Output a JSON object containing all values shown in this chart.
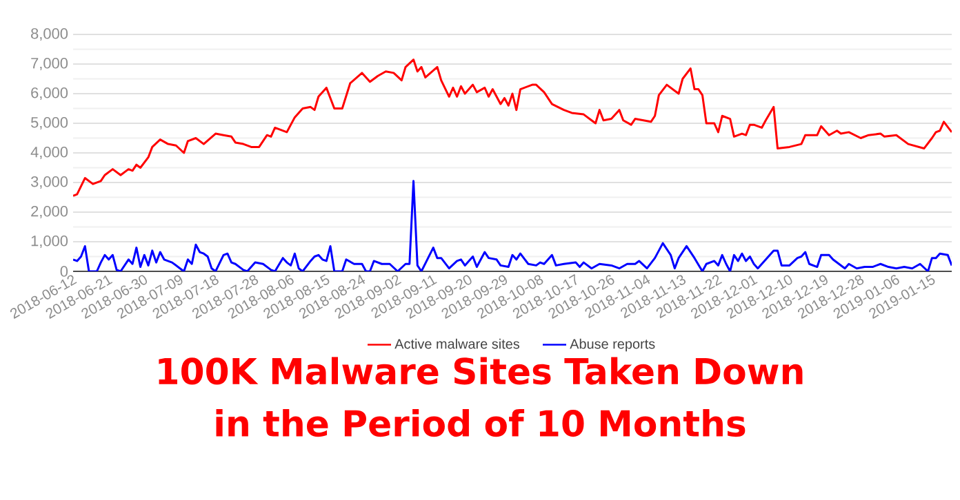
{
  "chart_data": {
    "type": "line",
    "title": "100K Malware Sites Taken Down in the Period of 10 Months",
    "xlim": [
      "2018-06-12",
      "2019-01-20"
    ],
    "xticks": [
      "2018-06-12",
      "2018-06-21",
      "2018-06-30",
      "2018-07-09",
      "2018-07-18",
      "2018-07-28",
      "2018-08-06",
      "2018-08-15",
      "2018-08-24",
      "2018-09-02",
      "2018-09-11",
      "2018-09-20",
      "2018-09-29",
      "2018-10-08",
      "2018-10-17",
      "2018-10-26",
      "2018-11-04",
      "2018-11-13",
      "2018-11-22",
      "2018-12-01",
      "2018-12-10",
      "2018-12-19",
      "2018-12-28",
      "2019-01-06",
      "2019-01-15"
    ],
    "ylim": [
      0,
      8000
    ],
    "yticks": [
      0,
      {
        "value": 1000,
        "label": "1,000"
      },
      {
        "value": 2000,
        "label": "2,000"
      },
      {
        "value": 3000,
        "label": "3,000"
      },
      {
        "value": 4000,
        "label": "4,000"
      },
      {
        "value": 5000,
        "label": "5,000"
      },
      {
        "value": 6000,
        "label": "6,000"
      },
      {
        "value": 7000,
        "label": "7,000"
      },
      {
        "value": 8000,
        "label": "8,000"
      }
    ],
    "grid": "y",
    "legend": "bottom",
    "marker": "none",
    "line_style": "solid",
    "series": [
      {
        "name": "Active malware sites",
        "color": "#ff0000",
        "x": [
          "2018-06-12",
          "2018-06-13",
          "2018-06-15",
          "2018-06-17",
          "2018-06-19",
          "2018-06-20",
          "2018-06-22",
          "2018-06-24",
          "2018-06-26",
          "2018-06-27",
          "2018-06-28",
          "2018-06-29",
          "2018-07-01",
          "2018-07-02",
          "2018-07-04",
          "2018-07-06",
          "2018-07-08",
          "2018-07-10",
          "2018-07-11",
          "2018-07-13",
          "2018-07-15",
          "2018-07-18",
          "2018-07-20",
          "2018-07-22",
          "2018-07-23",
          "2018-07-25",
          "2018-07-27",
          "2018-07-29",
          "2018-07-31",
          "2018-08-01",
          "2018-08-02",
          "2018-08-05",
          "2018-08-07",
          "2018-08-09",
          "2018-08-11",
          "2018-08-12",
          "2018-08-13",
          "2018-08-15",
          "2018-08-17",
          "2018-08-19",
          "2018-08-21",
          "2018-08-24",
          "2018-08-26",
          "2018-08-28",
          "2018-08-30",
          "2018-09-01",
          "2018-09-03",
          "2018-09-04",
          "2018-09-06",
          "2018-09-07",
          "2018-09-08",
          "2018-09-09",
          "2018-09-12",
          "2018-09-13",
          "2018-09-15",
          "2018-09-16",
          "2018-09-17",
          "2018-09-18",
          "2018-09-19",
          "2018-09-21",
          "2018-09-22",
          "2018-09-24",
          "2018-09-25",
          "2018-09-26",
          "2018-09-27",
          "2018-09-28",
          "2018-09-29",
          "2018-09-30",
          "2018-10-01",
          "2018-10-02",
          "2018-10-03",
          "2018-10-06",
          "2018-10-07",
          "2018-10-09",
          "2018-10-11",
          "2018-10-14",
          "2018-10-16",
          "2018-10-19",
          "2018-10-21",
          "2018-10-22",
          "2018-10-23",
          "2018-10-24",
          "2018-10-26",
          "2018-10-28",
          "2018-10-29",
          "2018-10-31",
          "2018-11-01",
          "2018-11-03",
          "2018-11-05",
          "2018-11-06",
          "2018-11-07",
          "2018-11-09",
          "2018-11-11",
          "2018-11-12",
          "2018-11-13",
          "2018-11-15",
          "2018-11-16",
          "2018-11-17",
          "2018-11-18",
          "2018-11-19",
          "2018-11-21",
          "2018-11-22",
          "2018-11-23",
          "2018-11-25",
          "2018-11-26",
          "2018-11-28",
          "2018-11-29",
          "2018-11-30",
          "2018-12-01",
          "2018-12-03",
          "2018-12-04",
          "2018-12-06",
          "2018-12-07",
          "2018-12-10",
          "2018-12-13",
          "2018-12-14",
          "2018-12-17",
          "2018-12-18",
          "2018-12-20",
          "2018-12-22",
          "2018-12-23",
          "2018-12-25",
          "2018-12-28",
          "2018-12-30",
          "2019-01-02",
          "2019-01-03",
          "2019-01-06",
          "2019-01-09",
          "2019-01-13",
          "2019-01-15",
          "2019-01-16",
          "2019-01-17",
          "2019-01-18",
          "2019-01-20"
        ],
        "values": [
          2550,
          2600,
          3150,
          2950,
          3050,
          3250,
          3450,
          3250,
          3450,
          3400,
          3600,
          3500,
          3850,
          4200,
          4450,
          4300,
          4250,
          4000,
          4400,
          4500,
          4300,
          4650,
          4600,
          4550,
          4350,
          4300,
          4200,
          4200,
          4600,
          4550,
          4850,
          4700,
          5200,
          5500,
          5550,
          5450,
          5900,
          6200,
          5500,
          5500,
          6350,
          6700,
          6400,
          6600,
          6750,
          6700,
          6450,
          6900,
          7150,
          6750,
          6900,
          6550,
          6900,
          6450,
          5900,
          6200,
          5900,
          6250,
          6000,
          6300,
          6050,
          6200,
          5900,
          6150,
          5900,
          5650,
          5850,
          5600,
          6000,
          5450,
          6150,
          6300,
          6300,
          6050,
          5650,
          5450,
          5350,
          5300,
          5100,
          5000,
          5450,
          5100,
          5150,
          5450,
          5100,
          4950,
          5150,
          5100,
          5050,
          5250,
          5950,
          6300,
          6100,
          6000,
          6500,
          6850,
          6150,
          6150,
          5950,
          5000,
          5000,
          4700,
          5250,
          5150,
          4550,
          4650,
          4600,
          4950,
          4950,
          4850,
          5100,
          5550,
          4150,
          4200,
          4300,
          4600,
          4600,
          4900,
          4600,
          4750,
          4650,
          4700,
          4500,
          4600,
          4650,
          4550,
          4600,
          4300,
          4150,
          4500,
          4700,
          4750,
          5050,
          4700
        ]
      },
      {
        "name": "Abuse reports",
        "color": "#0000ff",
        "x": [
          "2018-06-12",
          "2018-06-13",
          "2018-06-14",
          "2018-06-15",
          "2018-06-16",
          "2018-06-18",
          "2018-06-19",
          "2018-06-20",
          "2018-06-21",
          "2018-06-22",
          "2018-06-23",
          "2018-06-24",
          "2018-06-26",
          "2018-06-27",
          "2018-06-28",
          "2018-06-29",
          "2018-06-30",
          "2018-07-01",
          "2018-07-02",
          "2018-07-03",
          "2018-07-04",
          "2018-07-05",
          "2018-07-07",
          "2018-07-09",
          "2018-07-10",
          "2018-07-11",
          "2018-07-12",
          "2018-07-13",
          "2018-07-14",
          "2018-07-15",
          "2018-07-16",
          "2018-07-17",
          "2018-07-18",
          "2018-07-20",
          "2018-07-21",
          "2018-07-22",
          "2018-07-23",
          "2018-07-25",
          "2018-07-26",
          "2018-07-28",
          "2018-07-30",
          "2018-08-01",
          "2018-08-02",
          "2018-08-04",
          "2018-08-05",
          "2018-08-06",
          "2018-08-07",
          "2018-08-08",
          "2018-08-09",
          "2018-08-11",
          "2018-08-12",
          "2018-08-13",
          "2018-08-14",
          "2018-08-15",
          "2018-08-16",
          "2018-08-17",
          "2018-08-19",
          "2018-08-20",
          "2018-08-22",
          "2018-08-24",
          "2018-08-25",
          "2018-08-26",
          "2018-08-27",
          "2018-08-29",
          "2018-08-31",
          "2018-09-02",
          "2018-09-04",
          "2018-09-05",
          "2018-09-06",
          "2018-09-07",
          "2018-09-08",
          "2018-09-11",
          "2018-09-12",
          "2018-09-13",
          "2018-09-15",
          "2018-09-17",
          "2018-09-18",
          "2018-09-19",
          "2018-09-21",
          "2018-09-22",
          "2018-09-24",
          "2018-09-25",
          "2018-09-27",
          "2018-09-28",
          "2018-09-30",
          "2018-10-01",
          "2018-10-02",
          "2018-10-03",
          "2018-10-05",
          "2018-10-07",
          "2018-10-08",
          "2018-10-09",
          "2018-10-11",
          "2018-10-12",
          "2018-10-14",
          "2018-10-17",
          "2018-10-18",
          "2018-10-19",
          "2018-10-21",
          "2018-10-23",
          "2018-10-26",
          "2018-10-28",
          "2018-10-30",
          "2018-11-01",
          "2018-11-02",
          "2018-11-04",
          "2018-11-06",
          "2018-11-07",
          "2018-11-08",
          "2018-11-10",
          "2018-11-11",
          "2018-11-12",
          "2018-11-14",
          "2018-11-16",
          "2018-11-18",
          "2018-11-19",
          "2018-11-21",
          "2018-11-22",
          "2018-11-23",
          "2018-11-24",
          "2018-11-25",
          "2018-11-26",
          "2018-11-27",
          "2018-11-28",
          "2018-11-29",
          "2018-11-30",
          "2018-12-01",
          "2018-12-02",
          "2018-12-04",
          "2018-12-06",
          "2018-12-07",
          "2018-12-08",
          "2018-12-10",
          "2018-12-12",
          "2018-12-13",
          "2018-12-14",
          "2018-12-15",
          "2018-12-17",
          "2018-12-18",
          "2018-12-20",
          "2018-12-21",
          "2018-12-24",
          "2018-12-25",
          "2018-12-27",
          "2018-12-29",
          "2018-12-31",
          "2019-01-02",
          "2019-01-04",
          "2019-01-06",
          "2019-01-08",
          "2019-01-10",
          "2019-01-12",
          "2019-01-14",
          "2019-01-15",
          "2019-01-16",
          "2019-01-17",
          "2019-01-19",
          "2019-01-20"
        ],
        "values": [
          400,
          350,
          500,
          850,
          0,
          0,
          300,
          550,
          400,
          550,
          50,
          0,
          400,
          250,
          800,
          150,
          550,
          200,
          700,
          300,
          650,
          400,
          300,
          100,
          0,
          400,
          250,
          900,
          650,
          600,
          500,
          100,
          0,
          550,
          600,
          300,
          250,
          50,
          0,
          300,
          250,
          50,
          0,
          450,
          300,
          200,
          600,
          100,
          0,
          350,
          500,
          550,
          400,
          350,
          850,
          0,
          0,
          400,
          250,
          250,
          0,
          0,
          350,
          250,
          250,
          0,
          250,
          250,
          3050,
          200,
          0,
          800,
          450,
          450,
          100,
          350,
          400,
          200,
          500,
          150,
          650,
          450,
          400,
          200,
          150,
          550,
          400,
          600,
          250,
          200,
          300,
          250,
          550,
          200,
          250,
          300,
          150,
          300,
          100,
          250,
          200,
          100,
          250,
          250,
          350,
          100,
          450,
          700,
          950,
          550,
          100,
          450,
          850,
          450,
          0,
          250,
          350,
          200,
          550,
          250,
          0,
          550,
          350,
          600,
          350,
          500,
          250,
          100,
          400,
          700,
          700,
          200,
          200,
          450,
          500,
          650,
          250,
          150,
          550,
          550,
          400,
          100,
          250,
          100,
          150,
          150,
          250,
          150,
          100,
          150,
          100,
          250,
          0,
          450,
          450,
          600,
          550,
          200
        ]
      }
    ]
  }
}
